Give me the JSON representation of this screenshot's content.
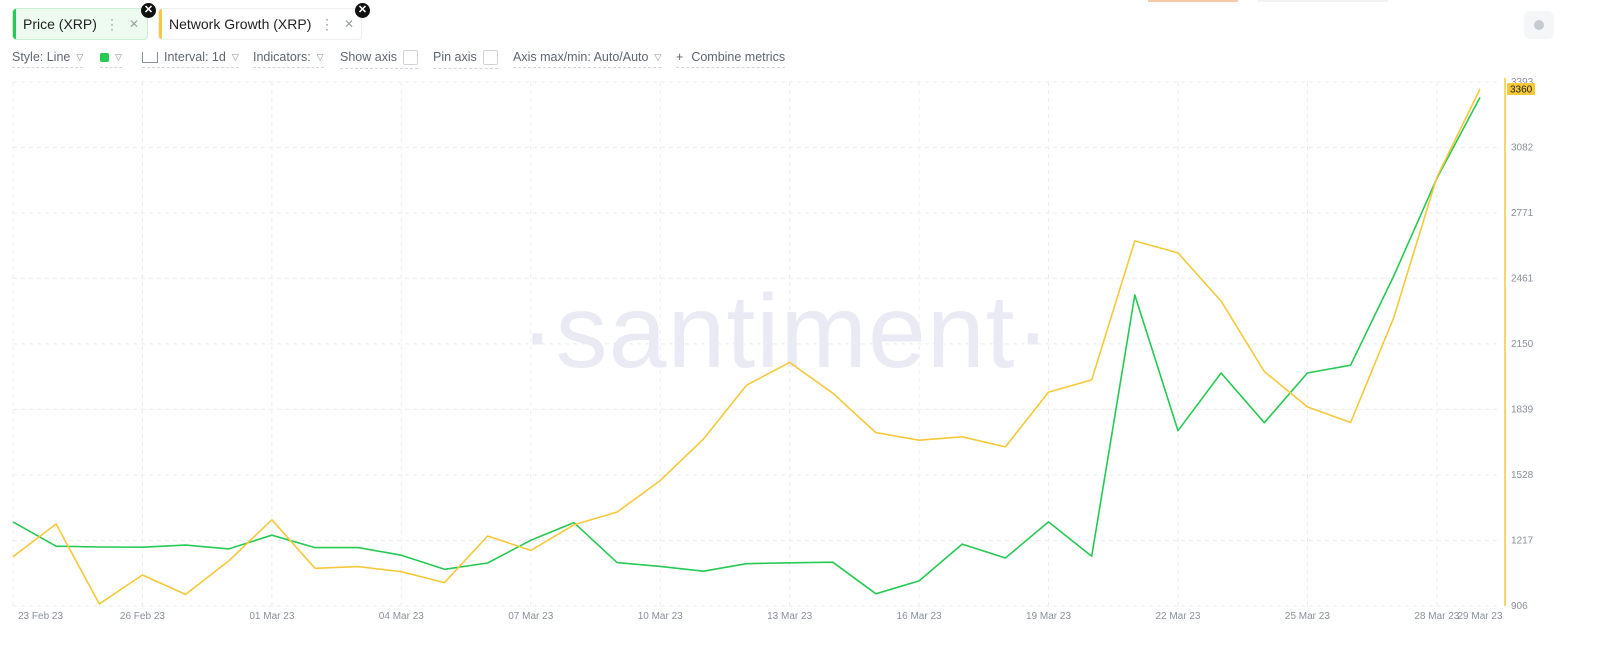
{
  "tabs": [
    {
      "label": "Price (XRP)",
      "color": "#26c953",
      "bg": "#edfbf1"
    },
    {
      "label": "Network Growth (XRP)",
      "color": "#f7c839",
      "bg": "#ffffff"
    }
  ],
  "tab_icons": {
    "menu": "vertical-dots-icon",
    "remove": "close-icon",
    "badge": "close-circle-icon"
  },
  "toolbar": {
    "style_label": "Style: Line",
    "interval_label": "Interval: 1d",
    "indicators_label": "Indicators:",
    "show_axis_label": "Show axis",
    "pin_axis_label": "Pin axis",
    "axis_minmax_label": "Axis max/min: Auto/Auto",
    "combine_label": "Combine metrics",
    "combine_prefix": "+",
    "metric_color": "#26c953"
  },
  "watermark": "·santiment·",
  "chart_data": {
    "type": "line",
    "x": [
      "23 Feb 23",
      "24 Feb 23",
      "25 Feb 23",
      "26 Feb 23",
      "27 Feb 23",
      "28 Feb 23",
      "01 Mar 23",
      "02 Mar 23",
      "03 Mar 23",
      "04 Mar 23",
      "05 Mar 23",
      "06 Mar 23",
      "07 Mar 23",
      "08 Mar 23",
      "09 Mar 23",
      "10 Mar 23",
      "11 Mar 23",
      "12 Mar 23",
      "13 Mar 23",
      "14 Mar 23",
      "15 Mar 23",
      "16 Mar 23",
      "17 Mar 23",
      "18 Mar 23",
      "19 Mar 23",
      "20 Mar 23",
      "21 Mar 23",
      "22 Mar 23",
      "23 Mar 23",
      "24 Mar 23",
      "25 Mar 23",
      "26 Mar 23",
      "27 Mar 23",
      "28 Mar 23",
      "29 Mar 23"
    ],
    "x_tick_labels": [
      "23 Feb 23",
      "26 Feb 23",
      "01 Mar 23",
      "04 Mar 23",
      "07 Mar 23",
      "10 Mar 23",
      "13 Mar 23",
      "16 Mar 23",
      "19 Mar 23",
      "22 Mar 23",
      "25 Mar 23",
      "28 Mar 23",
      "29 Mar 23"
    ],
    "y_ticks": [
      906,
      1217,
      1528,
      1839,
      2150,
      2461,
      2771,
      3082,
      3393
    ],
    "ylim": [
      906,
      3393
    ],
    "last_value_label": "3360",
    "series": [
      {
        "name": "Price (XRP)",
        "color": "#26c953",
        "values": [
          1305,
          1190,
          1186,
          1185,
          1195,
          1177,
          1242,
          1183,
          1183,
          1147,
          1080,
          1110,
          1218,
          1302,
          1112,
          1094,
          1071,
          1107,
          1111,
          1114,
          964,
          1025,
          1200,
          1134,
          1305,
          1142,
          2382,
          1738,
          2012,
          1776,
          2012,
          2049,
          2472,
          2936,
          3320
        ]
      },
      {
        "name": "Network Growth (XRP)",
        "color": "#f7c839",
        "values": [
          1140,
          1295,
          916,
          1053,
          961,
          1120,
          1315,
          1085,
          1093,
          1069,
          1017,
          1238,
          1170,
          1291,
          1352,
          1501,
          1698,
          1954,
          2062,
          1916,
          1729,
          1693,
          1709,
          1661,
          1921,
          1979,
          2639,
          2582,
          2353,
          2019,
          1851,
          1777,
          2274,
          2941,
          3360
        ]
      }
    ]
  }
}
